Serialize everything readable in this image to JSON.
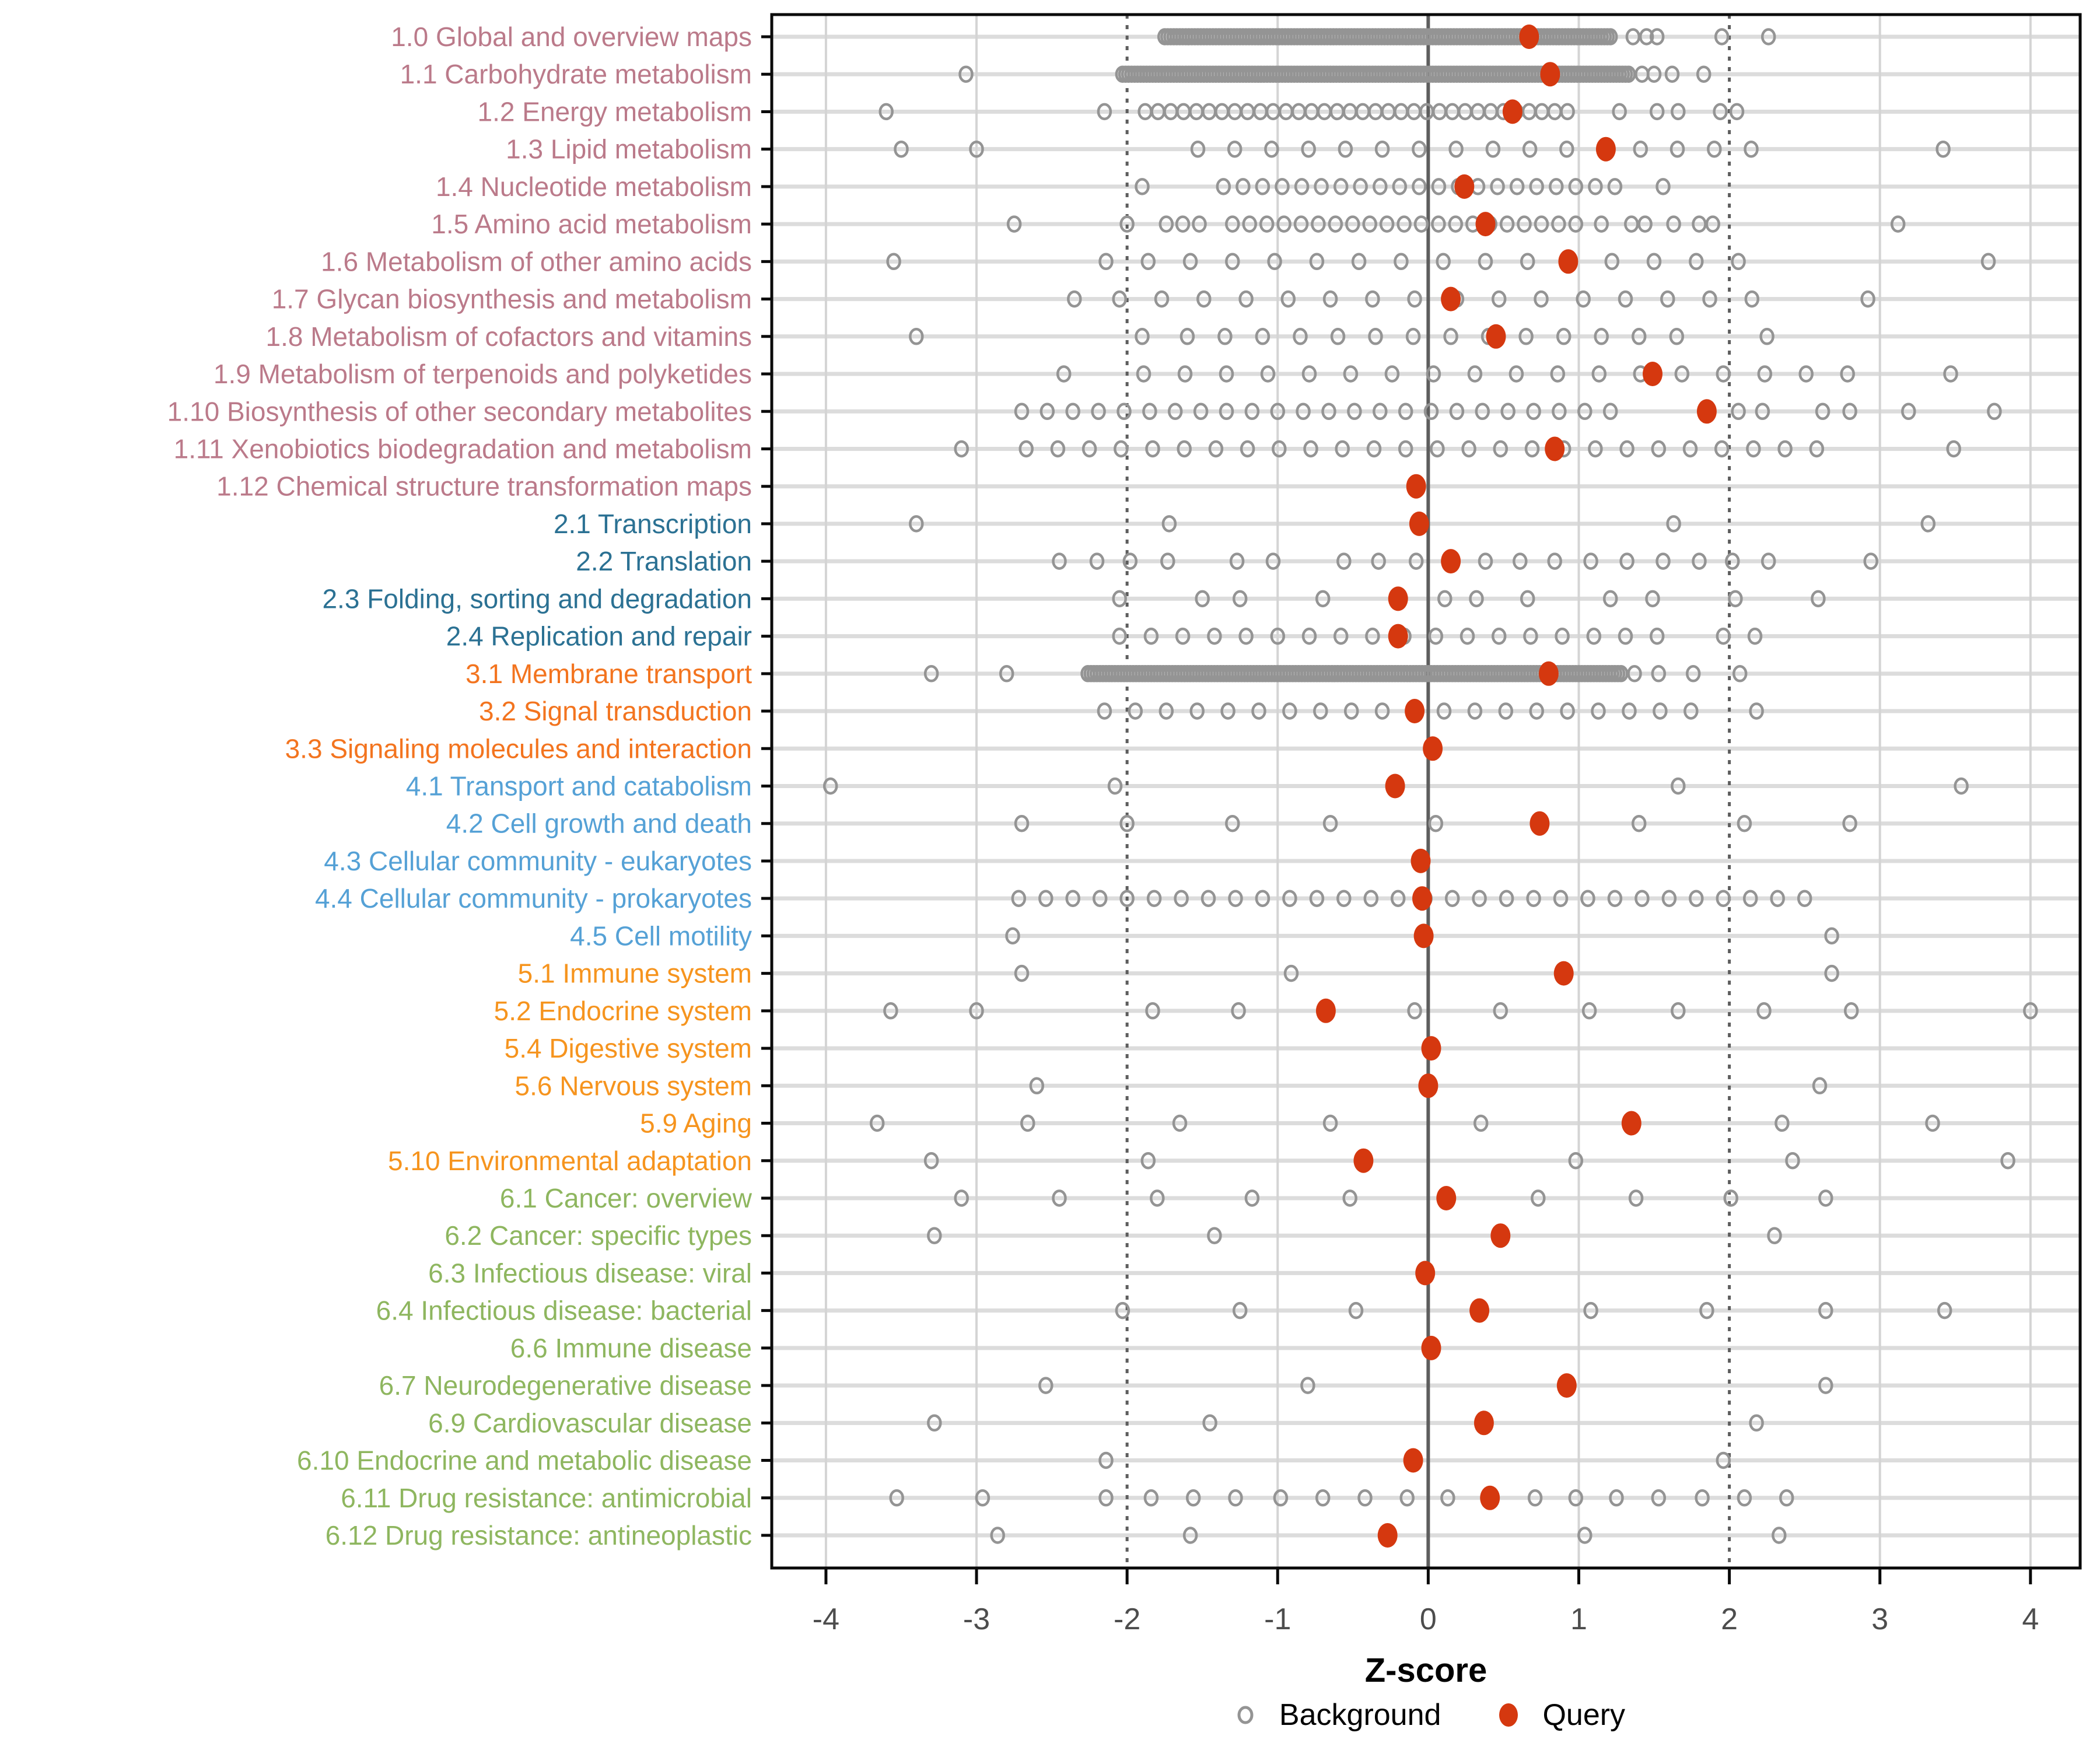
{
  "chart_data": {
    "type": "scatter",
    "xlabel": "Z-score",
    "x_ticks": [
      -4,
      -3,
      -2,
      -1,
      0,
      1,
      2,
      3,
      4
    ],
    "x_range": [
      -4.36,
      4.33
    ],
    "grid": "on",
    "reference_lines": {
      "zero": 0,
      "dashed": [
        -2,
        2
      ]
    },
    "legend_position": "bottom",
    "legend": [
      {
        "label": "Background",
        "type": "background"
      },
      {
        "label": "Query",
        "type": "query"
      }
    ],
    "colors": {
      "query_point": "#d5380f",
      "background_point": "#949494",
      "row_line": "#dcdcdc",
      "grid_line": "#d4d4d4",
      "zero_line": "#5e5e5e",
      "ref_line": "#5e5e5e",
      "panel_border": "#0a0a0a",
      "tick_text": "#4d4d4d"
    },
    "groups": {
      "metabolism": {
        "color": "#bb7a8a"
      },
      "genetic": {
        "color": "#2b7193"
      },
      "env": {
        "color": "#f3741f"
      },
      "cellular": {
        "color": "#55a1d6"
      },
      "organismal": {
        "color": "#f6941e"
      },
      "disease": {
        "color": "#8eb65f"
      }
    },
    "rows": [
      {
        "label": "1.0 Global and overview maps",
        "group": "metabolism",
        "query": 0.67,
        "bg": [
          1.36,
          1.45,
          1.52,
          1.95,
          2.26
        ],
        "bg_range": {
          "from": -1.75,
          "to": 1.22,
          "step": 0.02
        }
      },
      {
        "label": "1.1 Carbohydrate metabolism",
        "group": "metabolism",
        "query": 0.81,
        "bg": [
          -3.07,
          1.42,
          1.5,
          1.62,
          1.83
        ],
        "bg_range": {
          "from": -2.03,
          "to": 1.34,
          "step": 0.02
        }
      },
      {
        "label": "1.2 Energy metabolism",
        "group": "metabolism",
        "query": 0.56,
        "bg": [
          -3.6,
          -2.15,
          1.27,
          1.52,
          1.66,
          1.94,
          2.05
        ],
        "bg_range": {
          "from": -1.88,
          "to": 1.0,
          "step": 0.085
        }
      },
      {
        "label": "1.3 Lipid metabolism",
        "group": "metabolism",
        "query": 1.18,
        "bg": [
          -3.5,
          -3.0,
          3.42
        ],
        "bg_range": {
          "from": -1.53,
          "to": 2.17,
          "step": 0.245
        }
      },
      {
        "label": "1.4 Nucleotide metabolism",
        "group": "metabolism",
        "query": 0.24,
        "bg": [
          -1.9,
          1.56
        ],
        "bg_range": {
          "from": -1.36,
          "to": 1.24,
          "step": 0.13
        }
      },
      {
        "label": "1.5 Amino acid metabolism",
        "group": "metabolism",
        "query": 0.38,
        "bg": [
          -2.75,
          -2.0,
          -1.74,
          -1.63,
          -1.52,
          1.15,
          1.35,
          1.44,
          1.63,
          1.8,
          1.89,
          3.12
        ],
        "bg_range": {
          "from": -1.3,
          "to": 0.98,
          "step": 0.114
        }
      },
      {
        "label": "1.6 Metabolism of other amino acids",
        "group": "metabolism",
        "query": 0.93,
        "bg": [
          -3.55,
          -2.14,
          3.72
        ],
        "bg_range": {
          "from": -1.86,
          "to": 2.32,
          "step": 0.28
        }
      },
      {
        "label": "1.7 Glycan biosynthesis and metabolism",
        "group": "metabolism",
        "query": 0.15,
        "bg": [
          -2.35,
          2.92
        ],
        "bg_range": {
          "from": -2.05,
          "to": 2.35,
          "step": 0.28
        }
      },
      {
        "label": "1.8 Metabolism of cofactors and vitamins",
        "group": "metabolism",
        "query": 0.45,
        "bg": [
          -3.4,
          -1.9,
          2.25
        ],
        "bg_range": {
          "from": -1.6,
          "to": 1.75,
          "step": 0.25
        }
      },
      {
        "label": "1.9 Metabolism of terpenoids and polyketides",
        "group": "metabolism",
        "query": 1.49,
        "bg": [
          -2.42,
          3.47
        ],
        "bg_range": {
          "from": -1.89,
          "to": 2.91,
          "step": 0.275
        }
      },
      {
        "label": "1.10 Biosynthesis of other secondary metabolites",
        "group": "metabolism",
        "query": 1.85,
        "bg": [
          2.06,
          2.22,
          2.62,
          2.8,
          3.19,
          3.76
        ],
        "bg_range": {
          "from": -2.7,
          "to": 1.27,
          "step": 0.17
        }
      },
      {
        "label": "1.11 Xenobiotics biodegradation and metabolism",
        "group": "metabolism",
        "query": 0.84,
        "bg": [
          -3.1,
          3.49
        ],
        "bg_range": {
          "from": -2.67,
          "to": 2.6,
          "step": 0.21
        }
      },
      {
        "label": "1.12 Chemical structure transformation maps",
        "group": "metabolism",
        "query": -0.08,
        "bg": []
      },
      {
        "label": "2.1 Transcription",
        "group": "genetic",
        "query": -0.06,
        "bg": [
          -3.4,
          -1.72,
          1.63,
          3.32
        ]
      },
      {
        "label": "2.2 Translation",
        "group": "genetic",
        "query": 0.15,
        "bg": [
          -2.45,
          -2.2,
          -1.98,
          -1.73,
          -1.27,
          -1.03,
          -0.56,
          -0.33,
          -0.08,
          0.38,
          0.61,
          0.84,
          1.08,
          1.32,
          1.56,
          1.8,
          2.02,
          2.26,
          2.94
        ]
      },
      {
        "label": "2.3 Folding, sorting and degradation",
        "group": "genetic",
        "query": -0.2,
        "bg": [
          -2.05,
          -1.5,
          -1.25,
          -0.7,
          0.11,
          0.32,
          0.66,
          1.21,
          1.49,
          2.04,
          2.59
        ]
      },
      {
        "label": "2.4 Replication and repair",
        "group": "genetic",
        "query": -0.2,
        "bg": [
          1.96,
          2.17
        ],
        "bg_range": {
          "from": -2.05,
          "to": 1.53,
          "step": 0.21
        }
      },
      {
        "label": "3.1 Membrane transport",
        "group": "env",
        "query": 0.8,
        "bg": [
          -3.3,
          -2.8,
          1.37,
          1.53,
          1.76,
          2.07
        ],
        "bg_range": {
          "from": -2.26,
          "to": 1.28,
          "step": 0.02
        }
      },
      {
        "label": "3.2 Signal transduction",
        "group": "env",
        "query": -0.09,
        "bg": [
          2.18
        ],
        "bg_range": {
          "from": -2.15,
          "to": 1.76,
          "step": 0.205
        }
      },
      {
        "label": "3.3 Signaling molecules and interaction",
        "group": "env",
        "query": 0.03,
        "bg": []
      },
      {
        "label": "4.1 Transport and catabolism",
        "group": "cellular",
        "query": -0.22,
        "bg": [
          -3.97,
          -2.08,
          1.66,
          3.54
        ]
      },
      {
        "label": "4.2 Cell growth and death",
        "group": "cellular",
        "query": 0.74,
        "bg": [
          -2.7,
          -2.0,
          -1.3,
          -0.65,
          0.05,
          1.4,
          2.1,
          2.8
        ]
      },
      {
        "label": "4.3 Cellular community - eukaryotes",
        "group": "cellular",
        "query": -0.05,
        "bg": []
      },
      {
        "label": "4.4 Cellular community - prokaryotes",
        "group": "cellular",
        "query": -0.04,
        "bg": [],
        "bg_range": {
          "from": -2.72,
          "to": 2.62,
          "step": 0.18
        }
      },
      {
        "label": "4.5 Cell motility",
        "group": "cellular",
        "query": -0.03,
        "bg": [
          -2.76,
          2.68
        ]
      },
      {
        "label": "5.1 Immune system",
        "group": "organismal",
        "query": 0.9,
        "bg": [
          -2.7,
          -0.91,
          2.68
        ]
      },
      {
        "label": "5.2 Endocrine system",
        "group": "organismal",
        "query": -0.68,
        "bg": [
          -3.57,
          -3.0,
          -1.83,
          -1.26,
          -0.09,
          0.48,
          1.07,
          1.66,
          2.23,
          2.81,
          4.0
        ]
      },
      {
        "label": "5.4 Digestive system",
        "group": "organismal",
        "query": 0.02,
        "bg": []
      },
      {
        "label": "5.6 Nervous system",
        "group": "organismal",
        "query": 0.0,
        "bg": [
          -2.6,
          2.6
        ]
      },
      {
        "label": "5.9 Aging",
        "group": "organismal",
        "query": 1.35,
        "bg": [
          -3.66,
          -2.66,
          -1.65,
          -0.65,
          0.35,
          2.35,
          3.35
        ]
      },
      {
        "label": "5.10 Environmental adaptation",
        "group": "organismal",
        "query": -0.43,
        "bg": [
          -3.3,
          -1.86,
          0.98,
          2.42,
          3.85
        ]
      },
      {
        "label": "6.1 Cancer: overview",
        "group": "disease",
        "query": 0.12,
        "bg": [
          -3.1,
          -2.45,
          -1.8,
          -1.17,
          -0.52,
          0.73,
          1.38,
          2.01,
          2.64
        ]
      },
      {
        "label": "6.2 Cancer: specific types",
        "group": "disease",
        "query": 0.48,
        "bg": [
          -3.28,
          -1.42,
          2.3
        ]
      },
      {
        "label": "6.3 Infectious disease: viral",
        "group": "disease",
        "query": -0.02,
        "bg": []
      },
      {
        "label": "6.4 Infectious disease: bacterial",
        "group": "disease",
        "query": 0.34,
        "bg": [
          -2.03,
          -1.25,
          -0.48,
          1.08,
          1.85,
          2.64,
          3.43
        ]
      },
      {
        "label": "6.6 Immune disease",
        "group": "disease",
        "query": 0.02,
        "bg": []
      },
      {
        "label": "6.7 Neurodegenerative disease",
        "group": "disease",
        "query": 0.92,
        "bg": [
          -2.54,
          -0.8,
          2.64
        ]
      },
      {
        "label": "6.9 Cardiovascular disease",
        "group": "disease",
        "query": 0.37,
        "bg": [
          -3.28,
          -1.45,
          2.18
        ]
      },
      {
        "label": "6.10 Endocrine and metabolic disease",
        "group": "disease",
        "query": -0.1,
        "bg": [
          -2.14,
          1.96
        ]
      },
      {
        "label": "6.11 Drug resistance: antimicrobial",
        "group": "disease",
        "query": 0.41,
        "bg": [
          -3.53,
          -2.96,
          -2.14,
          -1.84,
          -1.56,
          -1.28,
          -0.98,
          -0.7,
          -0.42,
          -0.14,
          0.13,
          0.71,
          0.98,
          1.25,
          1.53,
          1.82,
          2.1,
          2.38
        ]
      },
      {
        "label": "6.12 Drug resistance: antineoplastic",
        "group": "disease",
        "query": -0.27,
        "bg": [
          -2.86,
          -1.58,
          1.04,
          2.33
        ]
      }
    ]
  }
}
